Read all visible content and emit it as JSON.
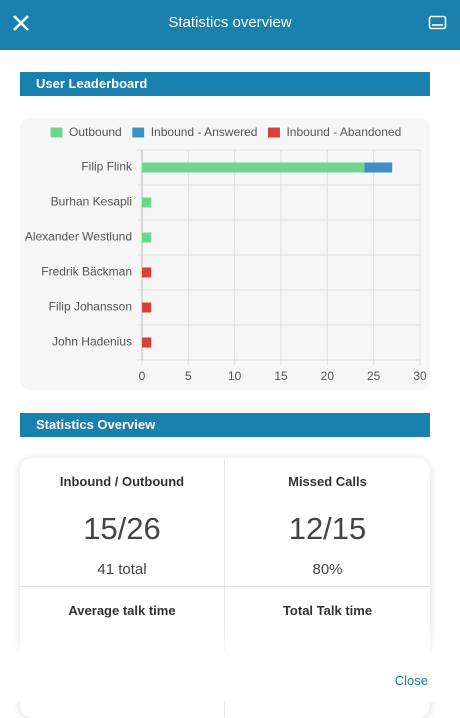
{
  "header": {
    "title": "Statistics overview"
  },
  "sections": [
    "User Leaderboard",
    "Statistics Overview"
  ],
  "chart_data": {
    "type": "bar",
    "orientation": "horizontal",
    "stacked": true,
    "categories": [
      "Filip Flink",
      "Burhan Kesapli",
      "Alexander Westlund",
      "Fredrik Bäckman",
      "Filip Johansson",
      "John Hadenius"
    ],
    "series": [
      {
        "name": "Outbound",
        "color": "#6dd58c",
        "values": [
          24,
          1,
          1,
          0,
          0,
          0
        ]
      },
      {
        "name": "Inbound - Answered",
        "color": "#3d8fc7",
        "values": [
          3,
          0,
          0,
          0,
          0,
          0
        ]
      },
      {
        "name": "Inbound - Abandoned",
        "color": "#d9403a",
        "values": [
          0,
          0,
          0,
          1,
          1,
          1
        ]
      }
    ],
    "xlim": [
      0,
      30
    ],
    "xticks": [
      0,
      5,
      10,
      15,
      20,
      25,
      30
    ],
    "grid": true,
    "legend": "top"
  },
  "stats": [
    {
      "label": "Inbound / Outbound",
      "value": "15/26",
      "sub": "41 total"
    },
    {
      "label": "Missed Calls",
      "value": "12/15",
      "sub": "80%"
    },
    {
      "label": "Average talk time"
    },
    {
      "label": "Total Talk time"
    }
  ],
  "footer": {
    "close": "Close"
  }
}
